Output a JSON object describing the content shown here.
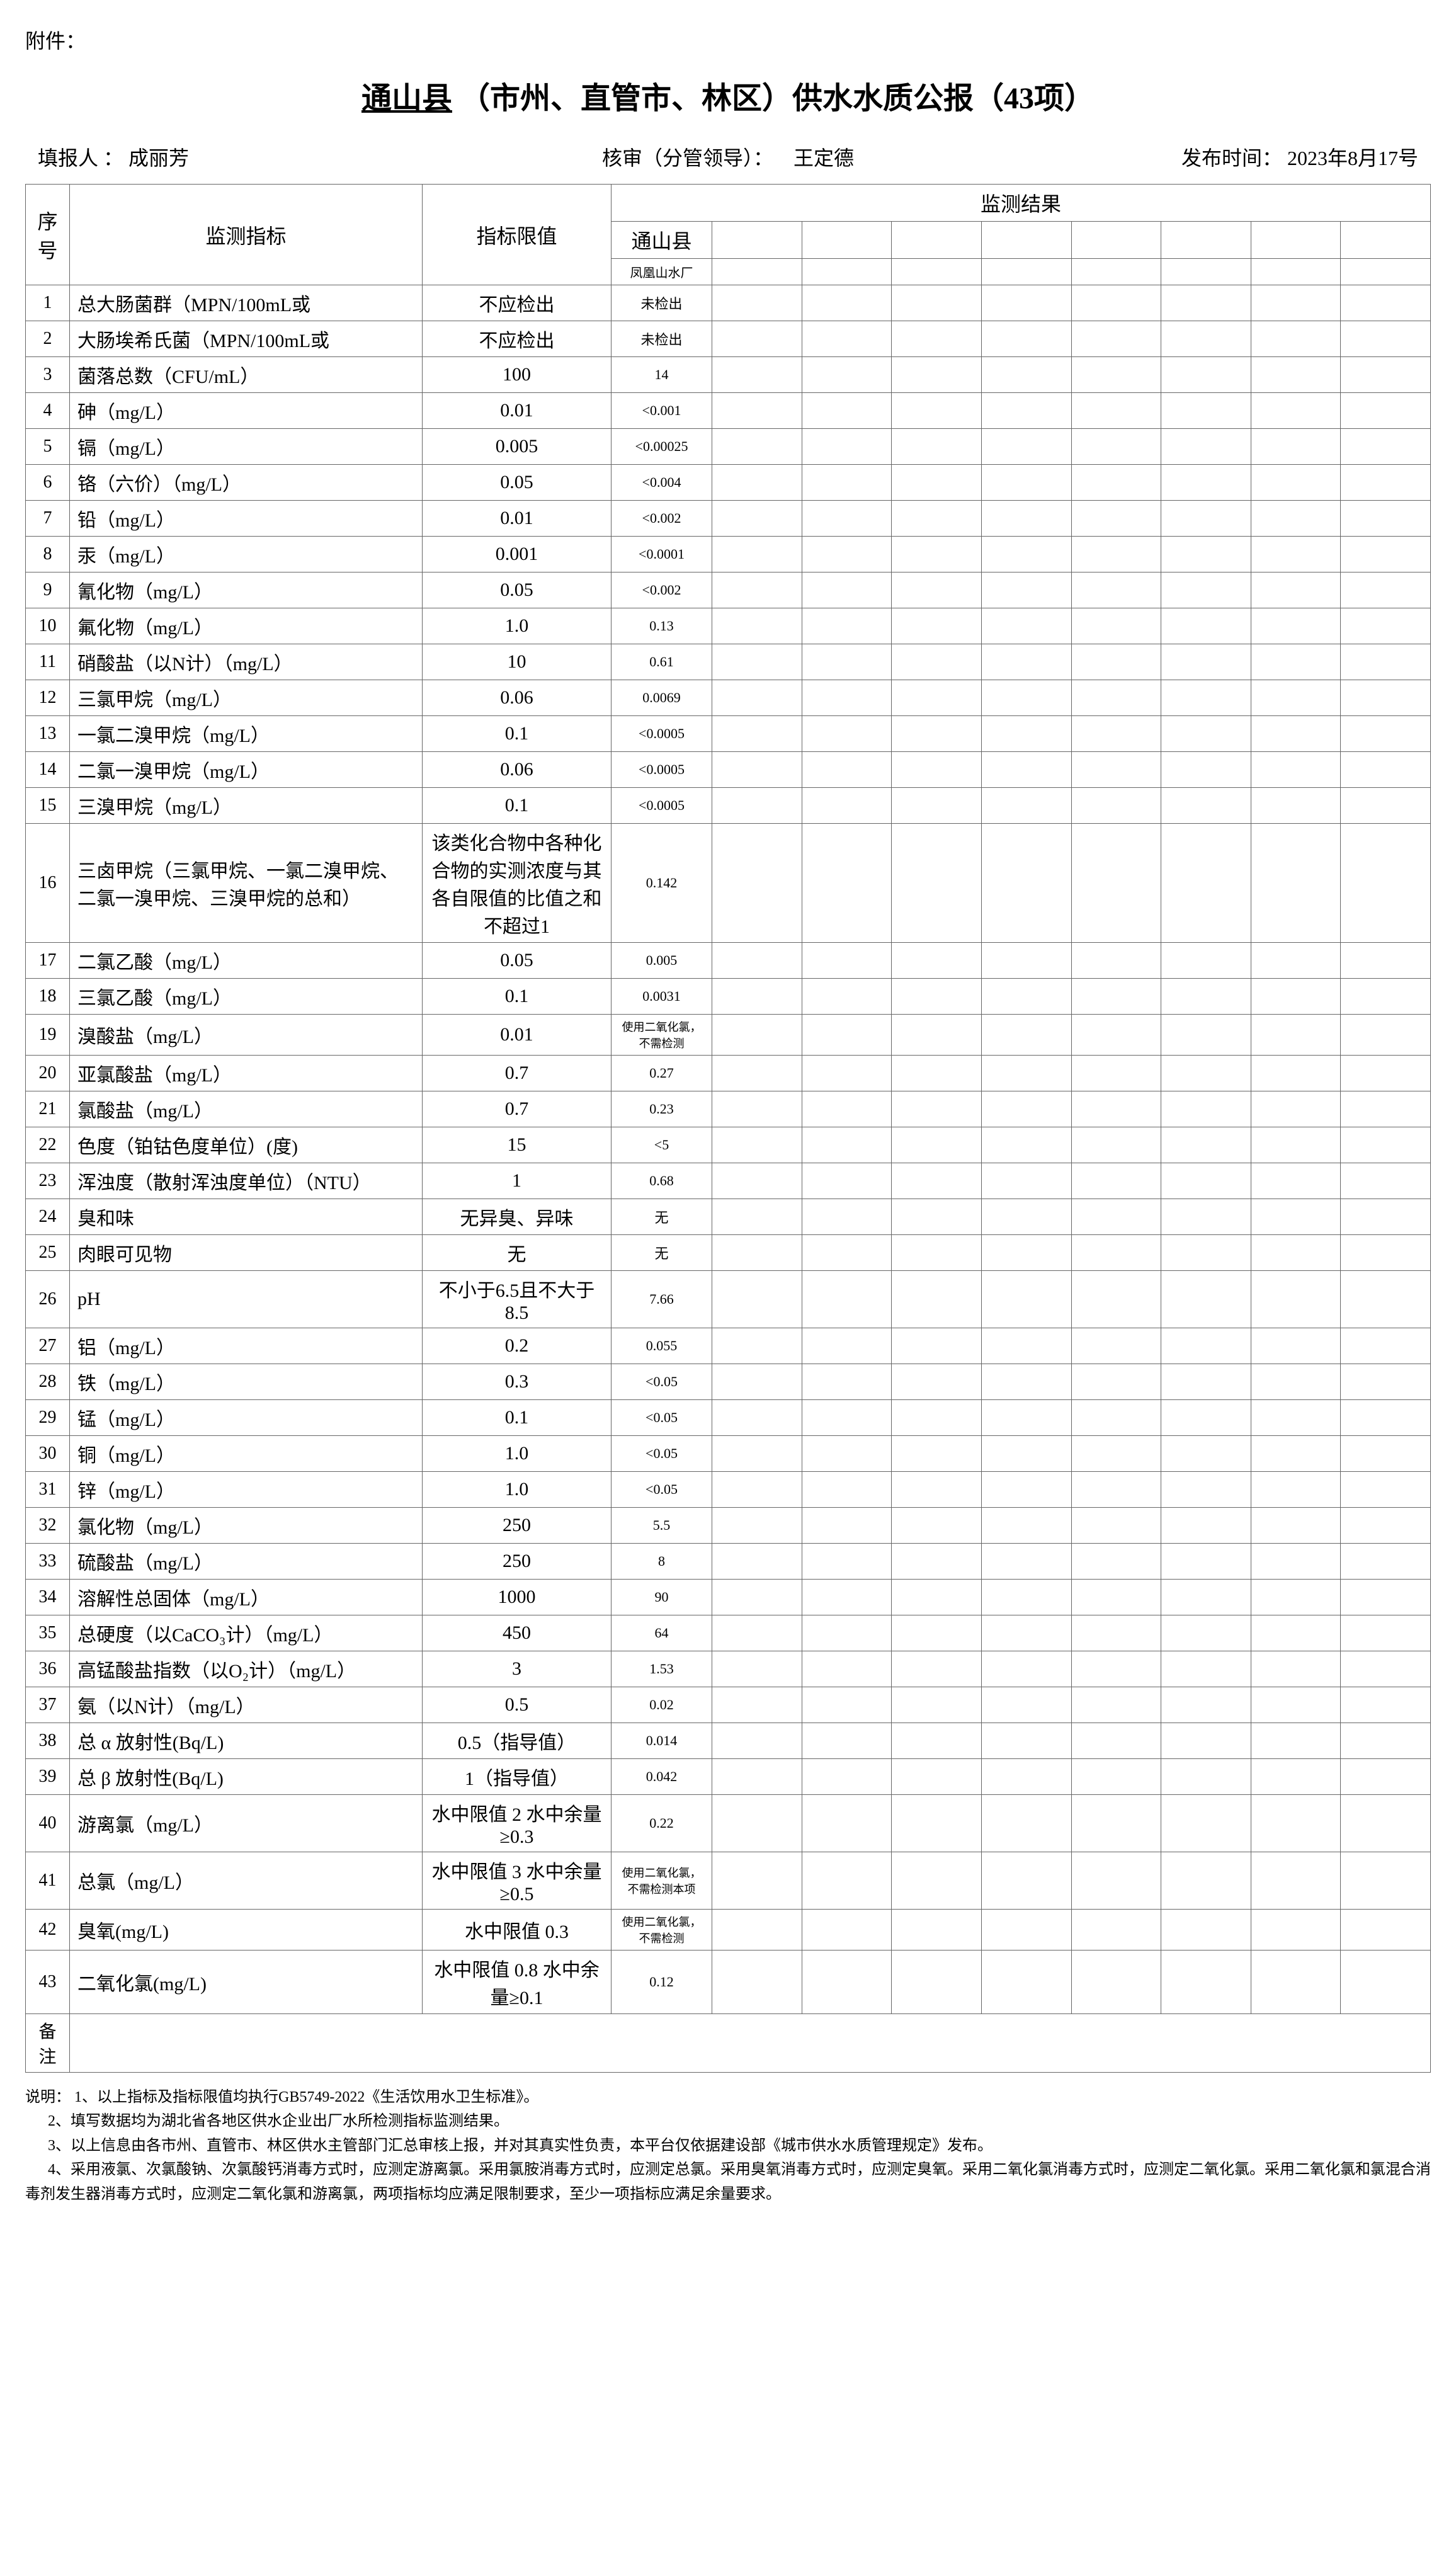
{
  "attachment_label": "附件：",
  "title_prefix": "通山县",
  "title_rest": "（市州、直管市、林区）供水水质公报（43项）",
  "header": {
    "reporter_label": "填报人 ：",
    "reporter": "成丽芳",
    "reviewer_label": "核审（分管领导）：",
    "reviewer": "王定德",
    "pubtime_label": "发布时间：",
    "pubtime": "2023年8月17号"
  },
  "columns": {
    "seq": "序号",
    "indicator": "监测指标",
    "limit": "指标限值",
    "result_group": "监测结果",
    "county": "通山县",
    "plant": "凤凰山水厂"
  },
  "rows": [
    {
      "n": "1",
      "ind": "总大肠菌群（MPN/100mL或",
      "lim": "不应检出",
      "res": "未检出"
    },
    {
      "n": "2",
      "ind": "大肠埃希氏菌（MPN/100mL或",
      "lim": "不应检出",
      "res": "未检出"
    },
    {
      "n": "3",
      "ind": "菌落总数（CFU/mL）",
      "lim": "100",
      "res": "14"
    },
    {
      "n": "4",
      "ind": "砷（mg/L）",
      "lim": "0.01",
      "res": "<0.001"
    },
    {
      "n": "5",
      "ind": "镉（mg/L）",
      "lim": "0.005",
      "res": "<0.00025"
    },
    {
      "n": "6",
      "ind": "铬（六价）（mg/L）",
      "lim": "0.05",
      "res": "<0.004"
    },
    {
      "n": "7",
      "ind": "铅（mg/L）",
      "lim": "0.01",
      "res": "<0.002"
    },
    {
      "n": "8",
      "ind": "汞（mg/L）",
      "lim": "0.001",
      "res": "<0.0001"
    },
    {
      "n": "9",
      "ind": "氰化物（mg/L）",
      "lim": "0.05",
      "res": "<0.002"
    },
    {
      "n": "10",
      "ind": "氟化物（mg/L）",
      "lim": "1.0",
      "res": "0.13"
    },
    {
      "n": "11",
      "ind": "硝酸盐（以N计）（mg/L）",
      "lim": "10",
      "res": "0.61"
    },
    {
      "n": "12",
      "ind": "三氯甲烷（mg/L）",
      "lim": "0.06",
      "res": "0.0069"
    },
    {
      "n": "13",
      "ind": "一氯二溴甲烷（mg/L）",
      "lim": "0.1",
      "res": "<0.0005"
    },
    {
      "n": "14",
      "ind": "二氯一溴甲烷（mg/L）",
      "lim": "0.06",
      "res": "<0.0005"
    },
    {
      "n": "15",
      "ind": "三溴甲烷（mg/L）",
      "lim": "0.1",
      "res": "<0.0005"
    },
    {
      "n": "16",
      "ind": "三卤甲烷（三氯甲烷、一氯二溴甲烷、二氯一溴甲烷、三溴甲烷的总和）",
      "lim": "该类化合物中各种化合物的实测浓度与其各自限值的比值之和不超过1",
      "res": "0.142"
    },
    {
      "n": "17",
      "ind": "二氯乙酸（mg/L）",
      "lim": "0.05",
      "res": "0.005"
    },
    {
      "n": "18",
      "ind": "三氯乙酸（mg/L）",
      "lim": "0.1",
      "res": "0.0031"
    },
    {
      "n": "19",
      "ind": "溴酸盐（mg/L）",
      "lim": "0.01",
      "res": "使用二氧化氯，不需检测",
      "small": true
    },
    {
      "n": "20",
      "ind": "亚氯酸盐（mg/L）",
      "lim": "0.7",
      "res": "0.27"
    },
    {
      "n": "21",
      "ind": "氯酸盐（mg/L）",
      "lim": "0.7",
      "res": "0.23"
    },
    {
      "n": "22",
      "ind": "色度（铂钴色度单位）(度)",
      "lim": "15",
      "res": "<5"
    },
    {
      "n": "23",
      "ind": "浑浊度（散射浑浊度单位）（NTU）",
      "lim": "1",
      "res": "0.68"
    },
    {
      "n": "24",
      "ind": "臭和味",
      "lim": "无异臭、异味",
      "res": "无"
    },
    {
      "n": "25",
      "ind": "肉眼可见物",
      "lim": "无",
      "res": "无"
    },
    {
      "n": "26",
      "ind": "pH",
      "lim": "不小于6.5且不大于8.5",
      "res": "7.66"
    },
    {
      "n": "27",
      "ind": "铝（mg/L）",
      "lim": "0.2",
      "res": "0.055"
    },
    {
      "n": "28",
      "ind": "铁（mg/L）",
      "lim": "0.3",
      "res": "<0.05"
    },
    {
      "n": "29",
      "ind": "锰（mg/L）",
      "lim": "0.1",
      "res": "<0.05"
    },
    {
      "n": "30",
      "ind": "铜（mg/L）",
      "lim": "1.0",
      "res": "<0.05"
    },
    {
      "n": "31",
      "ind": "锌（mg/L）",
      "lim": "1.0",
      "res": "<0.05"
    },
    {
      "n": "32",
      "ind": "氯化物（mg/L）",
      "lim": "250",
      "res": "5.5"
    },
    {
      "n": "33",
      "ind": "硫酸盐（mg/L）",
      "lim": "250",
      "res": "8"
    },
    {
      "n": "34",
      "ind": "溶解性总固体（mg/L）",
      "lim": "1000",
      "res": "90"
    },
    {
      "n": "35",
      "ind": "总硬度（以CaCO₃计）（mg/L）",
      "lim": "450",
      "res": "64"
    },
    {
      "n": "36",
      "ind": "高锰酸盐指数（以O₂计）（mg/L）",
      "lim": "3",
      "res": "1.53"
    },
    {
      "n": "37",
      "ind": "氨（以N计）（mg/L）",
      "lim": "0.5",
      "res": "0.02"
    },
    {
      "n": "38",
      "ind": "总 α 放射性(Bq/L)",
      "lim": "0.5（指导值）",
      "res": "0.014"
    },
    {
      "n": "39",
      "ind": "总 β 放射性(Bq/L)",
      "lim": "1（指导值）",
      "res": "0.042"
    },
    {
      "n": "40",
      "ind": "游离氯（mg/L）",
      "lim": "水中限值 2 水中余量≥0.3",
      "res": "0.22"
    },
    {
      "n": "41",
      "ind": "总氯（mg/L）",
      "lim": "水中限值 3 水中余量≥0.5",
      "res": "使用二氧化氯，不需检测本项",
      "small": true
    },
    {
      "n": "42",
      "ind": "臭氧(mg/L)",
      "lim": "水中限值 0.3",
      "res": "使用二氧化氯，不需检测",
      "small": true
    },
    {
      "n": "43",
      "ind": "二氧化氯(mg/L)",
      "lim": "水中限值 0.8 水中余量≥0.1",
      "res": "0.12"
    }
  ],
  "remark_label": "备注",
  "notes_label": "说明：",
  "notes": [
    "1、以上指标及指标限值均执行GB5749-2022《生活饮用水卫生标准》。",
    "2、填写数据均为湖北省各地区供水企业出厂水所检测指标监测结果。",
    "3、以上信息由各市州、直管市、林区供水主管部门汇总审核上报，并对其真实性负责，本平台仅依据建设部《城市供水水质管理规定》发布。",
    "4、采用液氯、次氯酸钠、次氯酸钙消毒方式时，应测定游离氯。采用氯胺消毒方式时，应测定总氯。采用臭氧消毒方式时，应测定臭氧。采用二氧化氯消毒方式时，应测定二氧化氯。采用二氧化氯和氯混合消毒剂发生器消毒方式时，应测定二氧化氯和游离氯，两项指标均应满足限制要求，至少一项指标应满足余量要求。"
  ]
}
